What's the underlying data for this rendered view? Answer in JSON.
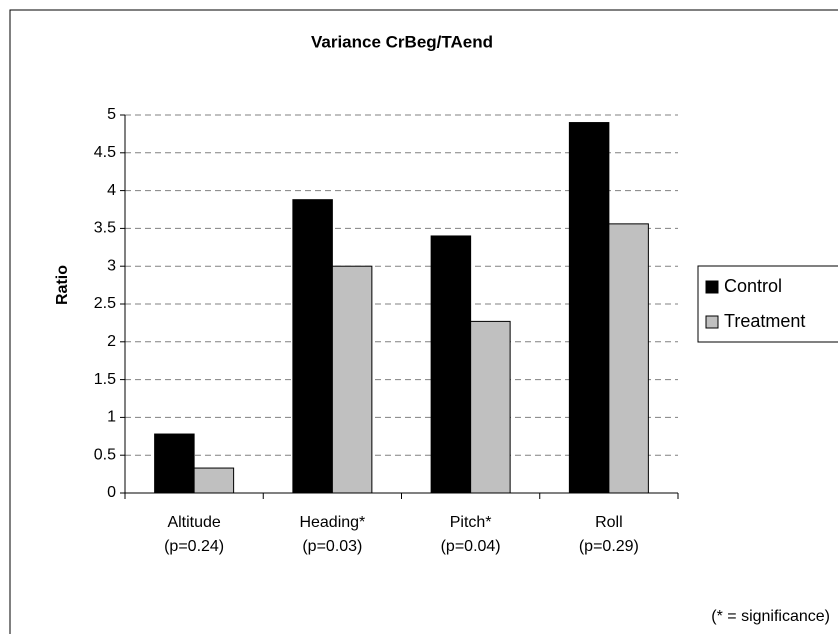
{
  "chart_data": {
    "type": "bar",
    "title": "Variance CrBeg/TAend",
    "y_label": "Ratio",
    "annotation": "(* = significance)",
    "categories": [
      [
        "Altitude",
        "(p=0.24)"
      ],
      [
        "Heading*",
        "(p=0.03)"
      ],
      [
        "Pitch*",
        "(p=0.04)"
      ],
      [
        "Roll",
        "(p=0.29)"
      ]
    ],
    "series": [
      {
        "name": "Control",
        "color": "#000000",
        "values": [
          0.78,
          3.88,
          3.4,
          4.9
        ]
      },
      {
        "name": "Treatment",
        "color": "#c0c0c0",
        "values": [
          0.33,
          3.0,
          2.27,
          3.56
        ]
      }
    ],
    "ylim": [
      0,
      5
    ],
    "yticks": [
      0,
      0.5,
      1,
      1.5,
      2,
      2.5,
      3,
      3.5,
      4,
      4.5,
      5
    ],
    "grid": true,
    "legend": "right"
  }
}
